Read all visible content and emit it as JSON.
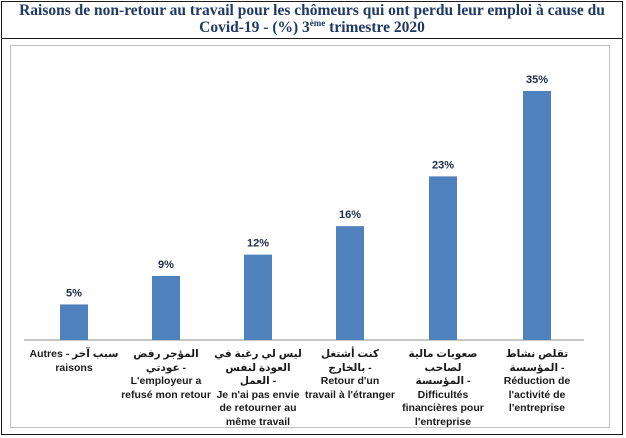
{
  "title": {
    "line1": "Raisons de non-retour au travail pour les chômeurs qui ont perdu leur emploi à cause du",
    "line2_main": "Covid-19 - (%) 3",
    "line2_sup": "ème",
    "line2_end": " trimestre 2020"
  },
  "colors": {
    "bar": "#4f81bd",
    "title": "#1f3864"
  },
  "chart_data": {
    "type": "bar",
    "title": "Raisons de non-retour au travail pour les chômeurs qui ont perdu leur emploi à cause du Covid-19 - (%) 3ème trimestre 2020",
    "categories": [
      "Autres - سبب آخر raisons",
      "المؤجر رفض عودتي - L'employeur a refusé mon retour",
      "ليس لي رغبة في العودة لنفس العمل - Je n'ai pas envie de retourner au même travail",
      "كنت أشتغل بالخارج - Retour d'un travail à l'étranger",
      "صعوبات مالية لصاحب المؤسسة - Difficultés financières pour l'entreprise",
      "تقلص نشاط المؤسسة - Réduction de l'activité de l'entreprise"
    ],
    "values": [
      5,
      9,
      12,
      16,
      23,
      35
    ],
    "value_labels": [
      "5%",
      "9%",
      "12%",
      "16%",
      "23%",
      "35%"
    ],
    "category_lines": [
      [
        "Autres - سبب آخر",
        "raisons"
      ],
      [
        "المؤجر رفض عودتي -",
        "L'employeur a",
        "refusé mon retour"
      ],
      [
        "ليس لي رغبة في",
        "العودة لنفس العمل -",
        "Je n'ai pas envie",
        "de retourner au",
        "même travail"
      ],
      [
        "كنت أشتغل بالخارج -",
        "Retour d'un",
        "travail à l'étranger"
      ],
      [
        "صعوبات مالية لصاحب",
        "المؤسسة -",
        "Difficultés",
        "financières pour",
        "l'entreprise"
      ],
      [
        "تقلص نشاط المؤسسة -",
        "Réduction de",
        "l'activité de",
        "l'entreprise"
      ]
    ],
    "ylim": [
      0,
      35
    ],
    "grid": false,
    "legend": "none"
  }
}
